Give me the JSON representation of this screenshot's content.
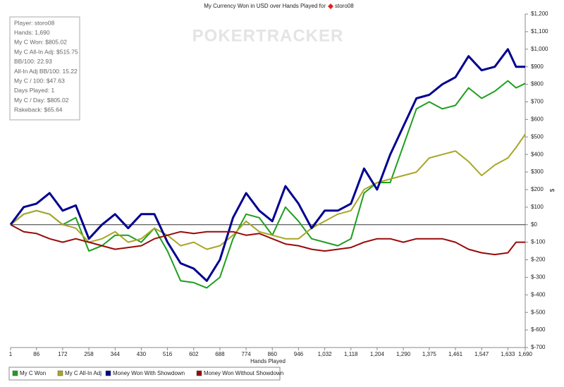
{
  "chart_data": {
    "type": "line",
    "title": "My Currency Won in USD over Hands Played for",
    "player": "storo08",
    "watermark": "POKERTRACKER",
    "xlabel": "Hands Played",
    "ylabel": "$",
    "stats": [
      "Player: storo08",
      "Hands: 1,690",
      "My C Won: $805.02",
      "My C All-In Adj: $515.75",
      "BB/100: 22.93",
      "All-In Adj BB/100: 15.22",
      "My C / 100: $47.63",
      "Days Played: 1",
      "My C / Day: $805.02",
      "Rakeback: $65.64"
    ],
    "x": [
      1,
      44,
      86,
      129,
      172,
      215,
      258,
      301,
      344,
      387,
      430,
      473,
      516,
      559,
      602,
      645,
      688,
      731,
      774,
      817,
      860,
      903,
      946,
      989,
      1032,
      1075,
      1118,
      1161,
      1204,
      1247,
      1290,
      1333,
      1375,
      1418,
      1461,
      1504,
      1547,
      1590,
      1633,
      1660,
      1690
    ],
    "series": [
      {
        "name": "My C Won",
        "color": "#1e9e1e",
        "width": 2,
        "values": [
          0,
          60,
          80,
          60,
          0,
          40,
          -150,
          -120,
          -60,
          -60,
          -100,
          -20,
          -150,
          -320,
          -330,
          -360,
          -300,
          -80,
          60,
          40,
          -60,
          100,
          20,
          -80,
          -100,
          -120,
          -80,
          180,
          240,
          240,
          450,
          660,
          700,
          660,
          680,
          780,
          720,
          760,
          820,
          780,
          805
        ]
      },
      {
        "name": "My C All-In Adj",
        "color": "#a8a626",
        "width": 2,
        "values": [
          0,
          60,
          80,
          60,
          0,
          -20,
          -100,
          -80,
          -40,
          -100,
          -80,
          -20,
          -60,
          -120,
          -100,
          -140,
          -120,
          -60,
          20,
          -40,
          -60,
          -80,
          -80,
          -20,
          20,
          60,
          80,
          200,
          240,
          260,
          280,
          300,
          380,
          400,
          420,
          360,
          280,
          340,
          380,
          440,
          515
        ]
      },
      {
        "name": "Money Won With Showdown",
        "color": "#00008f",
        "width": 3,
        "values": [
          0,
          100,
          120,
          180,
          80,
          110,
          -80,
          0,
          60,
          -20,
          60,
          60,
          -100,
          -220,
          -250,
          -320,
          -200,
          40,
          180,
          80,
          20,
          220,
          120,
          -20,
          80,
          80,
          120,
          320,
          200,
          400,
          560,
          720,
          740,
          800,
          840,
          960,
          880,
          900,
          1000,
          900,
          900
        ]
      },
      {
        "name": "Money Won Without Showdown",
        "color": "#990a0a",
        "width": 2,
        "values": [
          0,
          -40,
          -50,
          -80,
          -100,
          -80,
          -100,
          -120,
          -140,
          -130,
          -120,
          -80,
          -60,
          -40,
          -50,
          -40,
          -40,
          -40,
          -60,
          -50,
          -80,
          -110,
          -120,
          -140,
          -150,
          -140,
          -130,
          -100,
          -80,
          -80,
          -100,
          -80,
          -80,
          -80,
          -100,
          -140,
          -160,
          -170,
          -160,
          -100,
          -100
        ]
      }
    ],
    "xlim": [
      1,
      1690
    ],
    "xticks": [
      1,
      86,
      172,
      258,
      344,
      430,
      516,
      602,
      688,
      774,
      860,
      946,
      {
        "value": 1032,
        "label": "1,032"
      },
      {
        "value": 1118,
        "label": "1,118"
      },
      {
        "value": 1204,
        "label": "1,204"
      },
      {
        "value": 1290,
        "label": "1,290"
      },
      {
        "value": 1375,
        "label": "1,375"
      },
      {
        "value": 1461,
        "label": "1,461"
      },
      {
        "value": 1547,
        "label": "1,547"
      },
      {
        "value": 1633,
        "label": "1,633"
      },
      {
        "value": 1690,
        "label": "1,690"
      }
    ],
    "ylim": [
      -700,
      1200
    ],
    "yticks": [
      {
        "value": -700,
        "label": "$-700"
      },
      {
        "value": -600,
        "label": "$-600"
      },
      {
        "value": -500,
        "label": "$-500"
      },
      {
        "value": -400,
        "label": "$-400"
      },
      {
        "value": -300,
        "label": "$-300"
      },
      {
        "value": -200,
        "label": "$-200"
      },
      {
        "value": -100,
        "label": "$-100"
      },
      {
        "value": 0,
        "label": "$0"
      },
      {
        "value": 100,
        "label": "$100"
      },
      {
        "value": 200,
        "label": "$200"
      },
      {
        "value": 300,
        "label": "$300"
      },
      {
        "value": 400,
        "label": "$400"
      },
      {
        "value": 500,
        "label": "$500"
      },
      {
        "value": 600,
        "label": "$600"
      },
      {
        "value": 700,
        "label": "$700"
      },
      {
        "value": 800,
        "label": "$800"
      },
      {
        "value": 900,
        "label": "$900"
      },
      {
        "value": 1000,
        "label": "$1,000"
      },
      {
        "value": 1100,
        "label": "$1,100"
      },
      {
        "value": 1200,
        "label": "$1,200"
      }
    ]
  }
}
